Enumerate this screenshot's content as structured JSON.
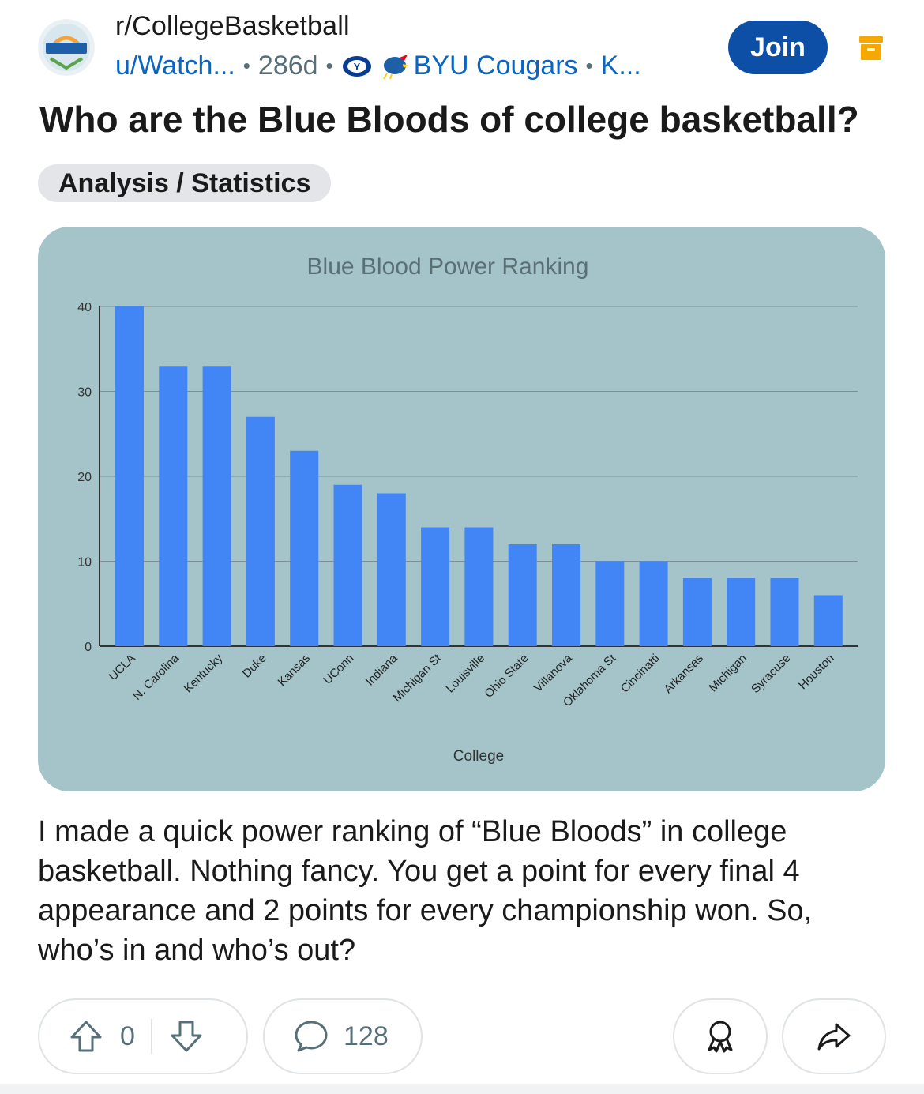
{
  "header": {
    "subreddit": "r/CollegeBasketball",
    "user": "u/Watch...",
    "age": "286d",
    "team_flair": "BYU Cougars",
    "more_flair": "K...",
    "join_label": "Join"
  },
  "post": {
    "title": "Who are the Blue Bloods of college basketball?",
    "flair": "Analysis / Statistics",
    "body": "I made a quick power ranking of “Blue Bloods” in college basketball. Nothing fancy. You get a point for every final 4 appearance and 2 points for every championship won. So, who’s in and who’s out?"
  },
  "actions": {
    "score": "0",
    "comments": "128"
  },
  "colors": {
    "chart_background": "#a4c4ca",
    "bar": "#4285f4",
    "join_button": "#0d4ea6",
    "link": "#0a66c2",
    "archive": "#f5a800"
  },
  "chart_data": {
    "type": "bar",
    "title": "Blue Blood Power Ranking",
    "xlabel": "College",
    "ylabel": "",
    "categories": [
      "UCLA",
      "N. Carolina",
      "Kentucky",
      "Duke",
      "Kansas",
      "UConn",
      "Indiana",
      "Michigan St",
      "Louisville",
      "Ohio State",
      "Villanova",
      "Oklahoma St",
      "Cincinatti",
      "Arkansas",
      "Michigan",
      "Syracuse",
      "Houston"
    ],
    "values": [
      40,
      33,
      33,
      27,
      23,
      19,
      18,
      14,
      14,
      12,
      12,
      10,
      10,
      8,
      8,
      8,
      6
    ],
    "ylim": [
      0,
      40
    ],
    "yticks": [
      0,
      10,
      20,
      30,
      40
    ],
    "grid": true,
    "legend": "none"
  }
}
